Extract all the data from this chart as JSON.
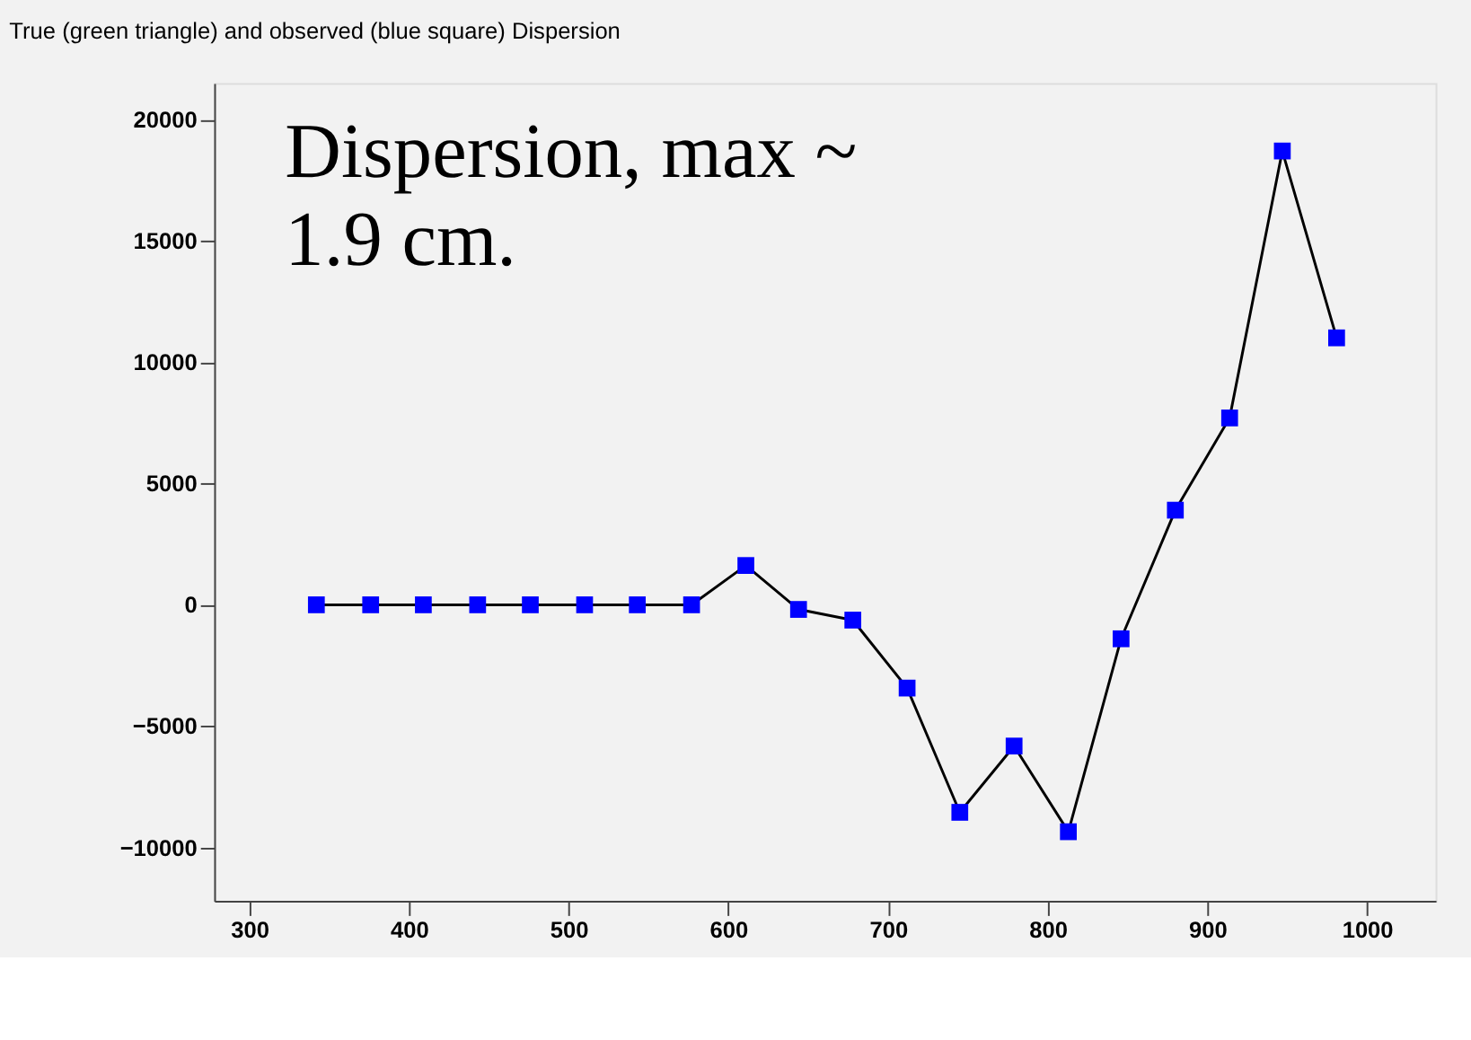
{
  "chart_data": {
    "type": "line",
    "title": "True (green triangle) and observed (blue square)  Dispersion",
    "annotations": [
      "Dispersion, max ~\n1.9 cm."
    ],
    "x": [
      342,
      376,
      409,
      443,
      476,
      510,
      543,
      577,
      611,
      644,
      678,
      712,
      745,
      779,
      813,
      846,
      880,
      914,
      947,
      981
    ],
    "series": [
      {
        "color": "#0000ff",
        "values": [
          0,
          0,
          0,
          0,
          0,
          0,
          0,
          0,
          1620,
          -190,
          -630,
          -3430,
          -8550,
          -5820,
          -9350,
          -1400,
          3900,
          7700,
          18700,
          11000
        ]
      }
    ],
    "xlim": [
      278,
      1043
    ],
    "xticks": [
      300,
      400,
      500,
      600,
      700,
      800,
      900,
      1000
    ],
    "ylim": [
      -12200,
      21500
    ],
    "yticks": [
      -10000,
      -5000,
      0,
      5000,
      10000,
      15000,
      20000
    ],
    "grid": false,
    "legend": false,
    "marker": "square",
    "line_style": "solid"
  }
}
